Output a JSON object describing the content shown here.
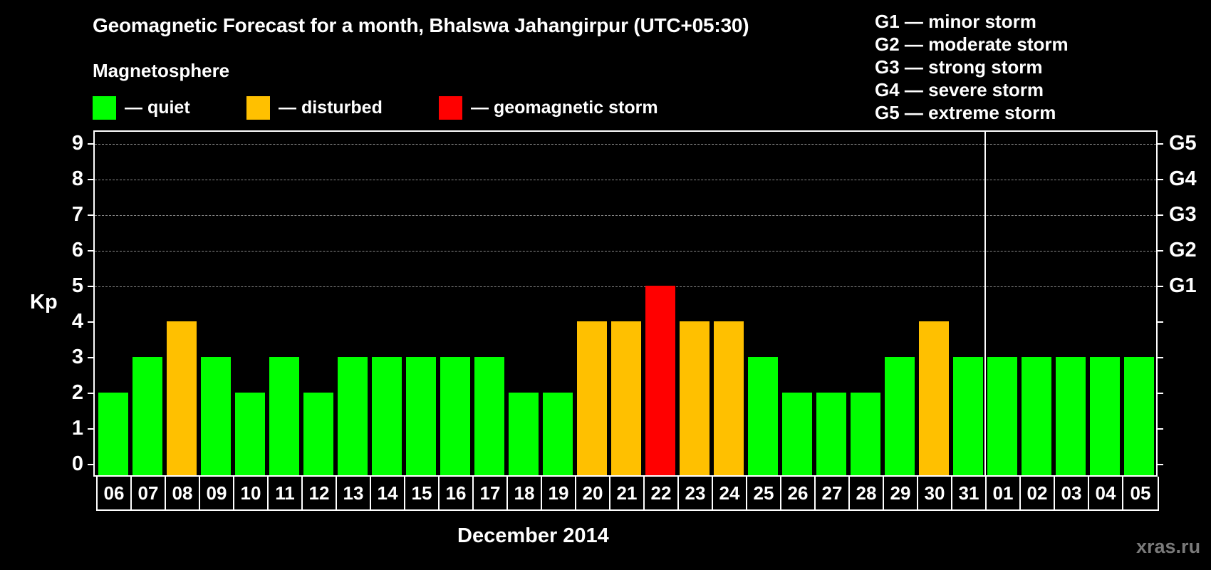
{
  "header": {
    "title": "Geomagnetic Forecast for a month, Bhalswa Jahangirpur (UTC+05:30)",
    "subtitle": "Magnetosphere"
  },
  "legend": [
    {
      "label": "— quiet",
      "color": "#00ff00"
    },
    {
      "label": "— disturbed",
      "color": "#ffc000"
    },
    {
      "label": "— geomagnetic storm",
      "color": "#ff0000"
    }
  ],
  "g_scale": [
    "G1 — minor storm",
    "G2 — moderate storm",
    "G3 — strong storm",
    "G4 — severe storm",
    "G5 — extreme storm"
  ],
  "axis": {
    "ylabel": "Kp",
    "yticks": [
      "0",
      "1",
      "2",
      "3",
      "4",
      "5",
      "6",
      "7",
      "8",
      "9"
    ],
    "right_labels": {
      "5": "G1",
      "6": "G2",
      "7": "G3",
      "8": "G4",
      "9": "G5"
    },
    "xlabel": "December 2014"
  },
  "watermark": "xras.ru",
  "colors": {
    "quiet": "#00ff00",
    "disturbed": "#ffc000",
    "storm": "#ff0000"
  },
  "chart_data": {
    "type": "bar",
    "title": "Geomagnetic Forecast for a month, Bhalswa Jahangirpur (UTC+05:30)",
    "xlabel": "December 2014",
    "ylabel": "Kp",
    "ylim": [
      0,
      9
    ],
    "grid": "dashed horizontal at Kp 5-9",
    "categories": [
      "06",
      "07",
      "08",
      "09",
      "10",
      "11",
      "12",
      "13",
      "14",
      "15",
      "16",
      "17",
      "18",
      "19",
      "20",
      "21",
      "22",
      "23",
      "24",
      "25",
      "26",
      "27",
      "28",
      "29",
      "30",
      "31",
      "01",
      "02",
      "03",
      "04",
      "05"
    ],
    "values": [
      2,
      3,
      4,
      3,
      2,
      3,
      2,
      3,
      3,
      3,
      3,
      3,
      2,
      2,
      4,
      4,
      5,
      4,
      4,
      3,
      2,
      2,
      2,
      3,
      4,
      3,
      3,
      3,
      3,
      3,
      3
    ],
    "levels": [
      "quiet",
      "quiet",
      "disturbed",
      "quiet",
      "quiet",
      "quiet",
      "quiet",
      "quiet",
      "quiet",
      "quiet",
      "quiet",
      "quiet",
      "quiet",
      "quiet",
      "disturbed",
      "disturbed",
      "storm",
      "disturbed",
      "disturbed",
      "quiet",
      "quiet",
      "quiet",
      "quiet",
      "quiet",
      "disturbed",
      "quiet",
      "quiet",
      "quiet",
      "quiet",
      "quiet",
      "quiet"
    ],
    "month_separator_after": "31",
    "legend": [
      "quiet",
      "disturbed",
      "geomagnetic storm"
    ],
    "right_axis": {
      "5": "G1",
      "6": "G2",
      "7": "G3",
      "8": "G4",
      "9": "G5"
    }
  }
}
